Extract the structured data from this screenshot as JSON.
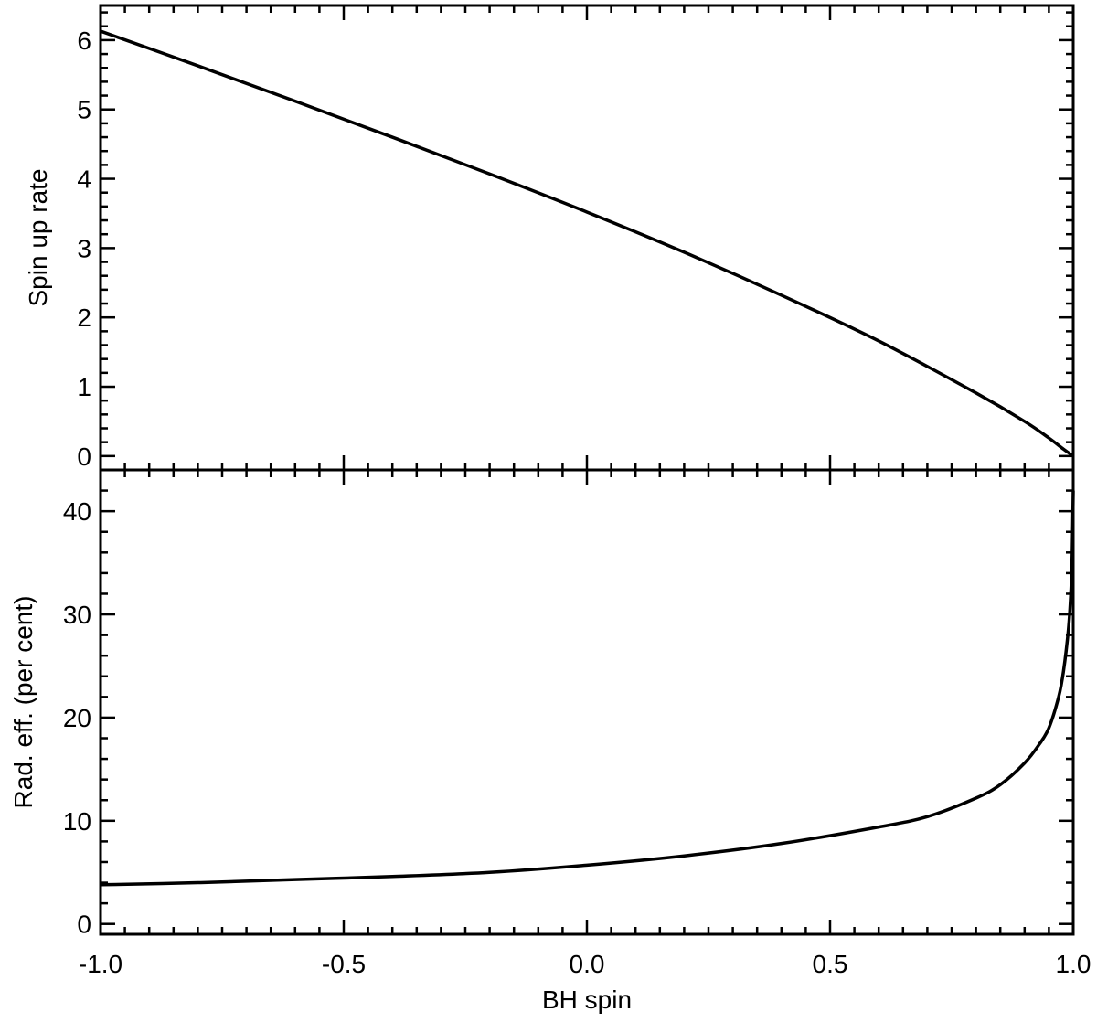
{
  "chart_data": [
    {
      "type": "line",
      "panel": "top",
      "ylabel": "Spin up rate",
      "xlim": [
        -1.0,
        1.0
      ],
      "ylim": [
        -0.2,
        6.5
      ],
      "y_ticks": [
        0,
        1,
        2,
        3,
        4,
        5,
        6
      ],
      "y_tick_labels": [
        "0",
        "1",
        "2",
        "3",
        "4",
        "5",
        "6"
      ],
      "series": [
        {
          "x": [
            -1.0,
            -0.8,
            -0.6,
            -0.4,
            -0.2,
            0.0,
            0.2,
            0.4,
            0.6,
            0.8,
            0.9,
            0.95,
            0.98,
            1.0
          ],
          "y": [
            6.13,
            5.63,
            5.12,
            4.6,
            4.07,
            3.52,
            2.94,
            2.32,
            1.66,
            0.91,
            0.5,
            0.26,
            0.1,
            0.0
          ]
        }
      ]
    },
    {
      "type": "line",
      "panel": "bottom",
      "xlabel": "BH spin",
      "ylabel": "Rad. eff. (per cent)",
      "xlim": [
        -1.0,
        1.0
      ],
      "ylim": [
        -1,
        44
      ],
      "x_ticks": [
        -1.0,
        -0.5,
        0.0,
        0.5,
        1.0
      ],
      "x_tick_labels": [
        "-1.0",
        "-0.5",
        "0.0",
        "0.5",
        "1.0"
      ],
      "y_ticks": [
        0,
        10,
        20,
        30,
        40
      ],
      "y_tick_labels": [
        "0",
        "10",
        "20",
        "30",
        "40"
      ],
      "series": [
        {
          "x": [
            -1.0,
            -0.8,
            -0.6,
            -0.4,
            -0.2,
            0.0,
            0.2,
            0.4,
            0.6,
            0.7,
            0.8,
            0.85,
            0.9,
            0.93,
            0.95,
            0.97,
            0.98,
            0.99,
            0.995,
            0.998,
            1.0
          ],
          "y": [
            3.8,
            4.0,
            4.3,
            4.6,
            5.0,
            5.7,
            6.6,
            7.8,
            9.4,
            10.4,
            12.2,
            13.5,
            15.6,
            17.4,
            19.0,
            22.0,
            24.5,
            28.5,
            32.0,
            36.0,
            42.0
          ]
        }
      ]
    }
  ]
}
